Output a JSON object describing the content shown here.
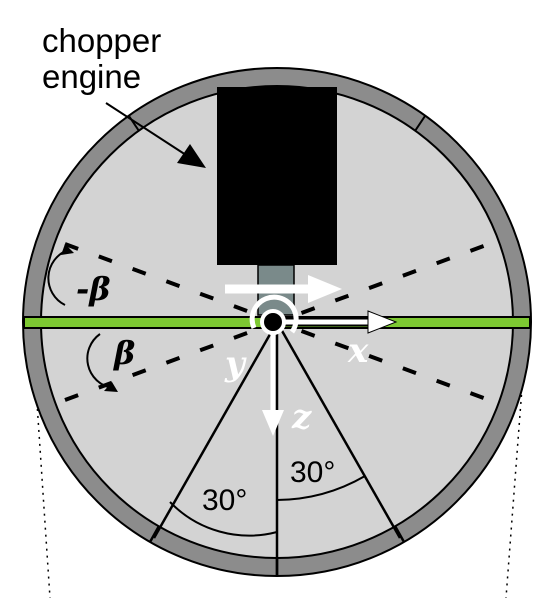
{
  "labels": {
    "title_line1": "chopper",
    "title_line2": "engine",
    "beta_neg": "-β",
    "beta_pos": "β",
    "axis_x": "x",
    "axis_y": "y",
    "axis_z": "z",
    "angle_left": "30°",
    "angle_right": "30°"
  },
  "colors": {
    "outer_ring": "#8c8c8c",
    "disk": "#d3d3d3",
    "engine": "#000000",
    "shaft": "#7a8a8a",
    "plane": "#7dc832",
    "arrows": "#ffffff"
  }
}
